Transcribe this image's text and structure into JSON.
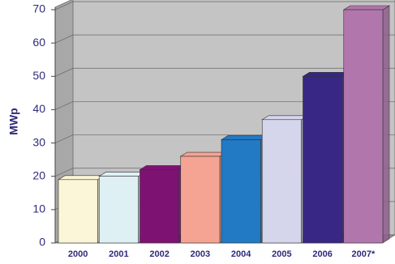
{
  "chart_data": {
    "type": "bar3d",
    "y_label": "MWp",
    "categories": [
      "2000",
      "2001",
      "2002",
      "2003",
      "2004",
      "2005",
      "2006",
      "2007*"
    ],
    "values": [
      19,
      20,
      22,
      26,
      31,
      37,
      50,
      70
    ],
    "colors": [
      "#faf6d7",
      "#dff0f4",
      "#7e1273",
      "#f5a494",
      "#2279c4",
      "#d5d5ec",
      "#382785",
      "#b176ac"
    ],
    "ylim": [
      0,
      70
    ],
    "yticks": [
      0,
      10,
      20,
      30,
      40,
      50,
      60,
      70
    ],
    "grid": true
  }
}
